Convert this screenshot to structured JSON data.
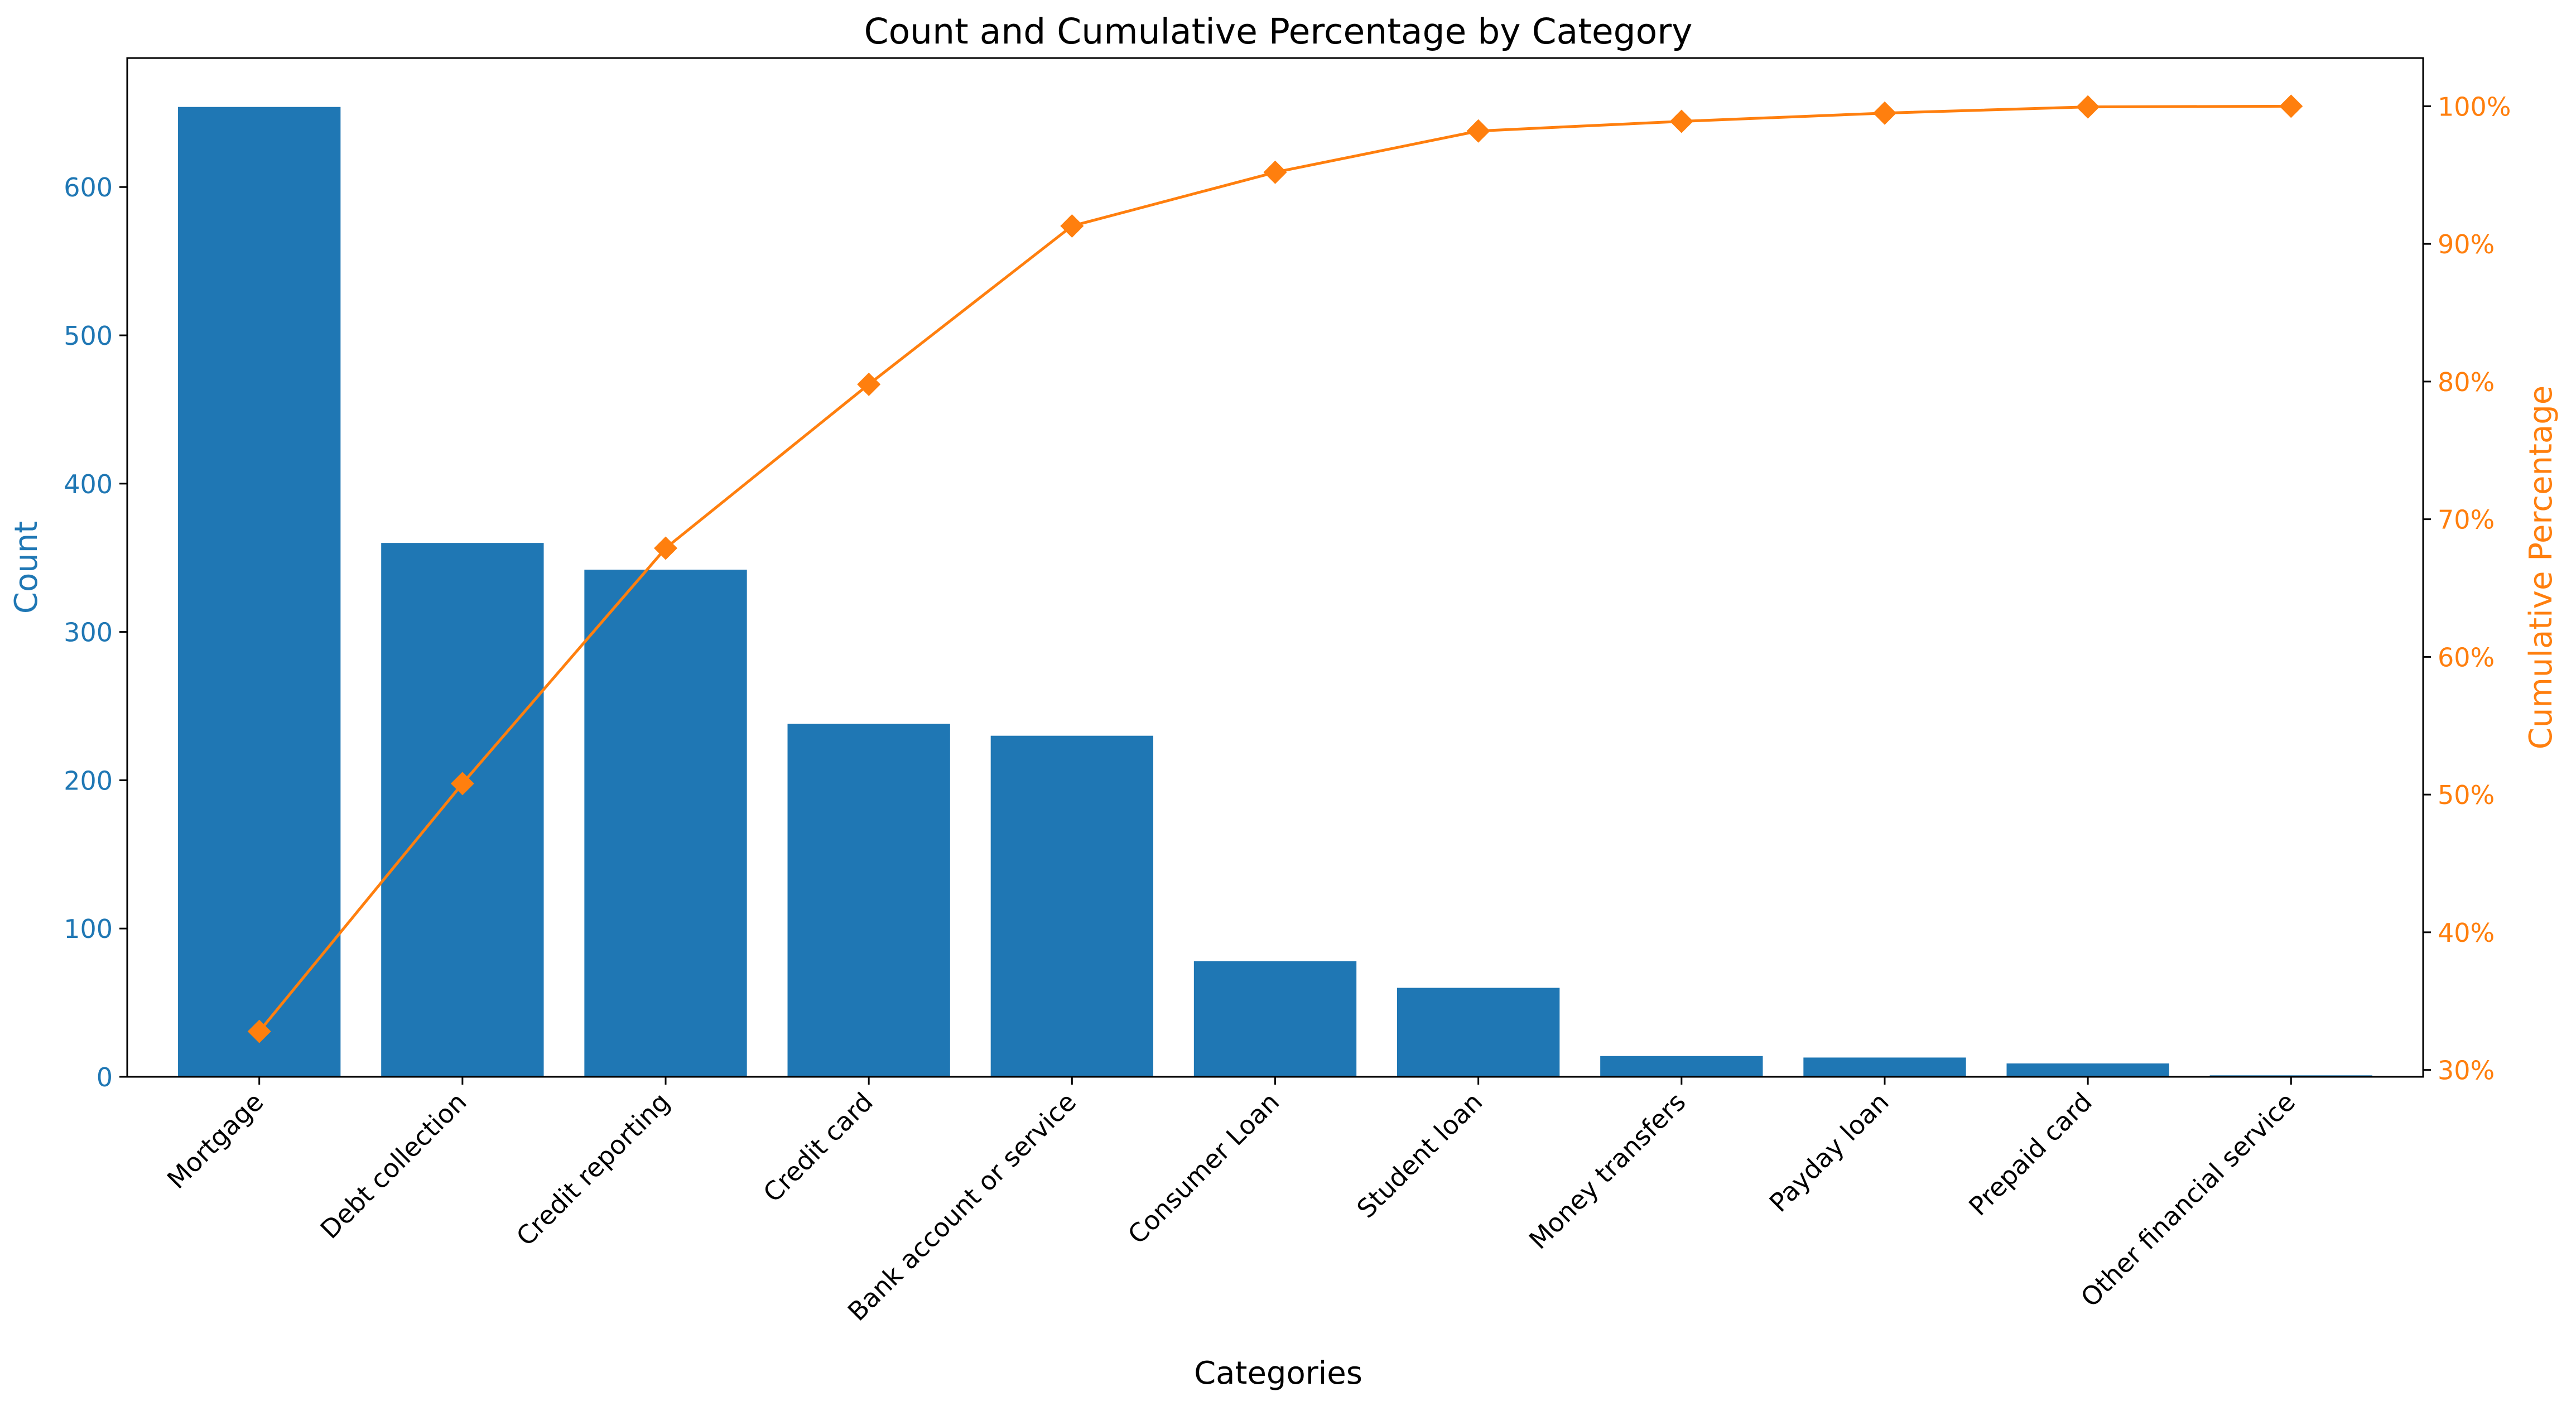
{
  "chart_data": {
    "type": "bar",
    "title": "Count and Cumulative Percentage by Category",
    "xlabel": "Categories",
    "ylabel": "Count",
    "y2label": "Cumulative Percentage",
    "categories": [
      "Mortgage",
      "Debt collection",
      "Credit reporting",
      "Credit card",
      "Bank account or service",
      "Consumer Loan",
      "Student loan",
      "Money transfers",
      "Payday loan",
      "Prepaid card",
      "Other financial service"
    ],
    "series": [
      {
        "type": "bar",
        "axis": "left",
        "values": [
          654,
          360,
          342,
          238,
          230,
          78,
          60,
          14,
          13,
          9,
          1
        ]
      },
      {
        "type": "line",
        "axis": "right",
        "marker": "diamond",
        "values": [
          32.8,
          50.8,
          67.9,
          79.8,
          91.3,
          95.2,
          98.2,
          98.9,
          99.5,
          99.95,
          100.0
        ]
      }
    ],
    "ylim": [
      0,
      687
    ],
    "y2lim": [
      29.5,
      103.5
    ],
    "yticks": [
      0,
      100,
      200,
      300,
      400,
      500,
      600
    ],
    "ytick_labels": [
      "0",
      "100",
      "200",
      "300",
      "400",
      "500",
      "600"
    ],
    "y2ticks": [
      30,
      40,
      50,
      60,
      70,
      80,
      90,
      100
    ],
    "y2tick_labels": [
      "30%",
      "40%",
      "50%",
      "60%",
      "70%",
      "80%",
      "90%",
      "100%"
    ],
    "grid": false,
    "colors": {
      "bar": "#1f77b4",
      "line": "#ff7f0e",
      "axis": "#000000"
    }
  }
}
